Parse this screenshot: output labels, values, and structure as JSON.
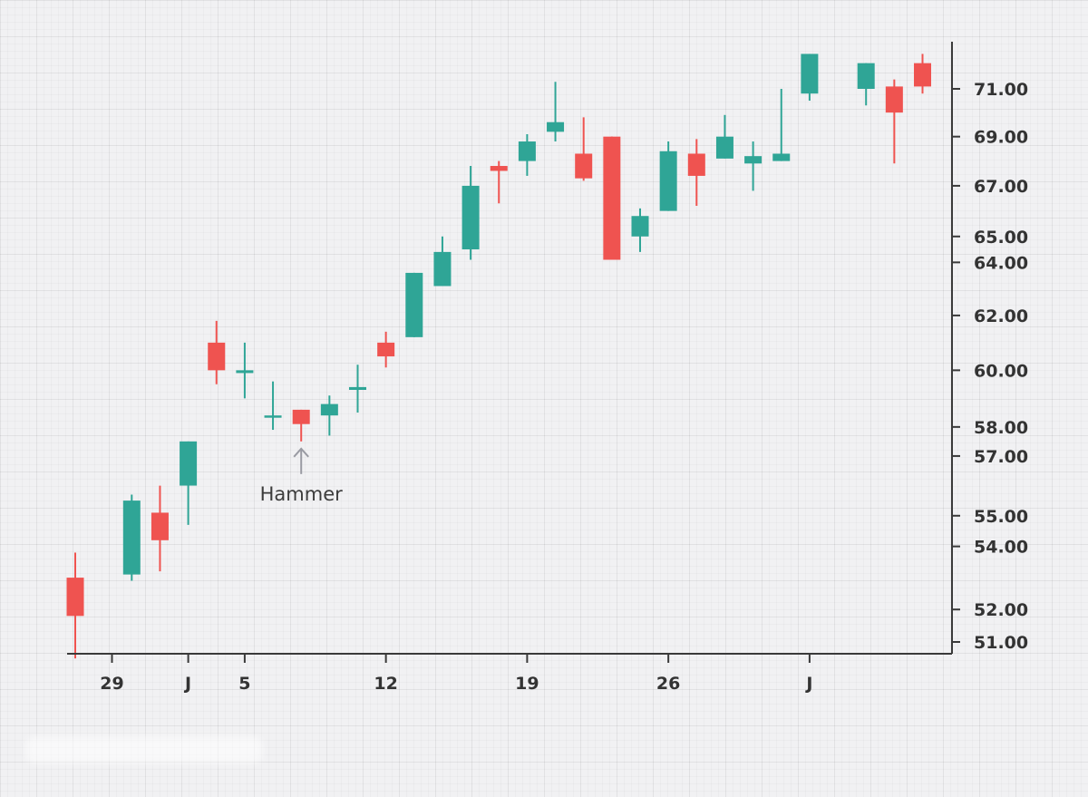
{
  "chart_data": {
    "type": "candlestick",
    "title": "",
    "xlabel": "",
    "ylabel": "",
    "ylim": [
      50.5,
      72.5
    ],
    "y_scale": "log",
    "grid": true,
    "colors": {
      "up": "#2fa596",
      "down": "#ef5350",
      "axis": "#3a3a3a",
      "annotation": "#9a9ba3"
    },
    "y_ticks": [
      {
        "value": 51,
        "label": "51.00"
      },
      {
        "value": 52,
        "label": "52.00"
      },
      {
        "value": 54,
        "label": "54.00"
      },
      {
        "value": 55,
        "label": "55.00"
      },
      {
        "value": 57,
        "label": "57.00"
      },
      {
        "value": 58,
        "label": "58.00"
      },
      {
        "value": 60,
        "label": "60.00"
      },
      {
        "value": 62,
        "label": "62.00"
      },
      {
        "value": 64,
        "label": "64.00"
      },
      {
        "value": 65,
        "label": "65.00"
      },
      {
        "value": 67,
        "label": "67.00"
      },
      {
        "value": 69,
        "label": "69.00"
      },
      {
        "value": 71,
        "label": "71.00"
      }
    ],
    "x_ticks": [
      {
        "index": 1.3,
        "label": "29"
      },
      {
        "index": 4,
        "label": "J"
      },
      {
        "index": 6,
        "label": "5"
      },
      {
        "index": 11,
        "label": "12"
      },
      {
        "index": 16,
        "label": "19"
      },
      {
        "index": 21,
        "label": "26"
      },
      {
        "index": 26,
        "label": "J"
      }
    ],
    "candles": [
      {
        "i": 0,
        "o": 53.0,
        "h": 53.8,
        "l": 50.5,
        "c": 51.8
      },
      {
        "i": 2,
        "o": 53.1,
        "h": 55.7,
        "l": 52.9,
        "c": 55.5
      },
      {
        "i": 3,
        "o": 55.1,
        "h": 56.0,
        "l": 53.2,
        "c": 54.2
      },
      {
        "i": 4,
        "o": 56.0,
        "h": 57.5,
        "l": 54.7,
        "c": 57.5
      },
      {
        "i": 5,
        "o": 61.0,
        "h": 61.8,
        "l": 59.5,
        "c": 60.0
      },
      {
        "i": 6,
        "o": 59.9,
        "h": 61.0,
        "l": 59.0,
        "c": 60.0
      },
      {
        "i": 7,
        "o": 58.4,
        "h": 59.6,
        "l": 57.9,
        "c": 58.4
      },
      {
        "i": 8,
        "o": 58.6,
        "h": 58.6,
        "l": 57.5,
        "c": 58.1
      },
      {
        "i": 9,
        "o": 58.4,
        "h": 59.1,
        "l": 57.7,
        "c": 58.8
      },
      {
        "i": 10,
        "o": 59.3,
        "h": 60.2,
        "l": 58.5,
        "c": 59.4
      },
      {
        "i": 11,
        "o": 61.0,
        "h": 61.4,
        "l": 60.1,
        "c": 60.5
      },
      {
        "i": 12,
        "o": 61.2,
        "h": 63.6,
        "l": 61.2,
        "c": 63.6
      },
      {
        "i": 13,
        "o": 63.1,
        "h": 65.0,
        "l": 63.1,
        "c": 64.4
      },
      {
        "i": 14,
        "o": 64.5,
        "h": 67.8,
        "l": 64.1,
        "c": 67.0
      },
      {
        "i": 15,
        "o": 67.8,
        "h": 68.0,
        "l": 66.3,
        "c": 67.6
      },
      {
        "i": 16,
        "o": 68.0,
        "h": 69.1,
        "l": 67.4,
        "c": 68.8
      },
      {
        "i": 17,
        "o": 69.2,
        "h": 71.3,
        "l": 68.8,
        "c": 69.6
      },
      {
        "i": 18,
        "o": 68.3,
        "h": 69.8,
        "l": 67.2,
        "c": 67.3
      },
      {
        "i": 19,
        "o": 69.0,
        "h": 69.0,
        "l": 64.1,
        "c": 64.1
      },
      {
        "i": 20,
        "o": 65.0,
        "h": 66.1,
        "l": 64.4,
        "c": 65.8
      },
      {
        "i": 21,
        "o": 66.0,
        "h": 68.8,
        "l": 66.0,
        "c": 68.4
      },
      {
        "i": 22,
        "o": 68.3,
        "h": 68.9,
        "l": 66.2,
        "c": 67.4
      },
      {
        "i": 23,
        "o": 68.1,
        "h": 69.9,
        "l": 68.1,
        "c": 69.0
      },
      {
        "i": 24,
        "o": 67.9,
        "h": 68.8,
        "l": 66.8,
        "c": 68.2
      },
      {
        "i": 25,
        "o": 68.0,
        "h": 71.0,
        "l": 68.0,
        "c": 68.3
      },
      {
        "i": 26,
        "o": 70.8,
        "h": 72.5,
        "l": 70.5,
        "c": 72.5
      },
      {
        "i": 28,
        "o": 71.0,
        "h": 72.1,
        "l": 70.3,
        "c": 72.1
      },
      {
        "i": 29,
        "o": 71.1,
        "h": 71.4,
        "l": 67.9,
        "c": 70.0
      },
      {
        "i": 30,
        "o": 72.1,
        "h": 72.5,
        "l": 70.8,
        "c": 71.1
      }
    ],
    "annotations": [
      {
        "label": "Hammer",
        "candle_index": 8
      }
    ]
  }
}
